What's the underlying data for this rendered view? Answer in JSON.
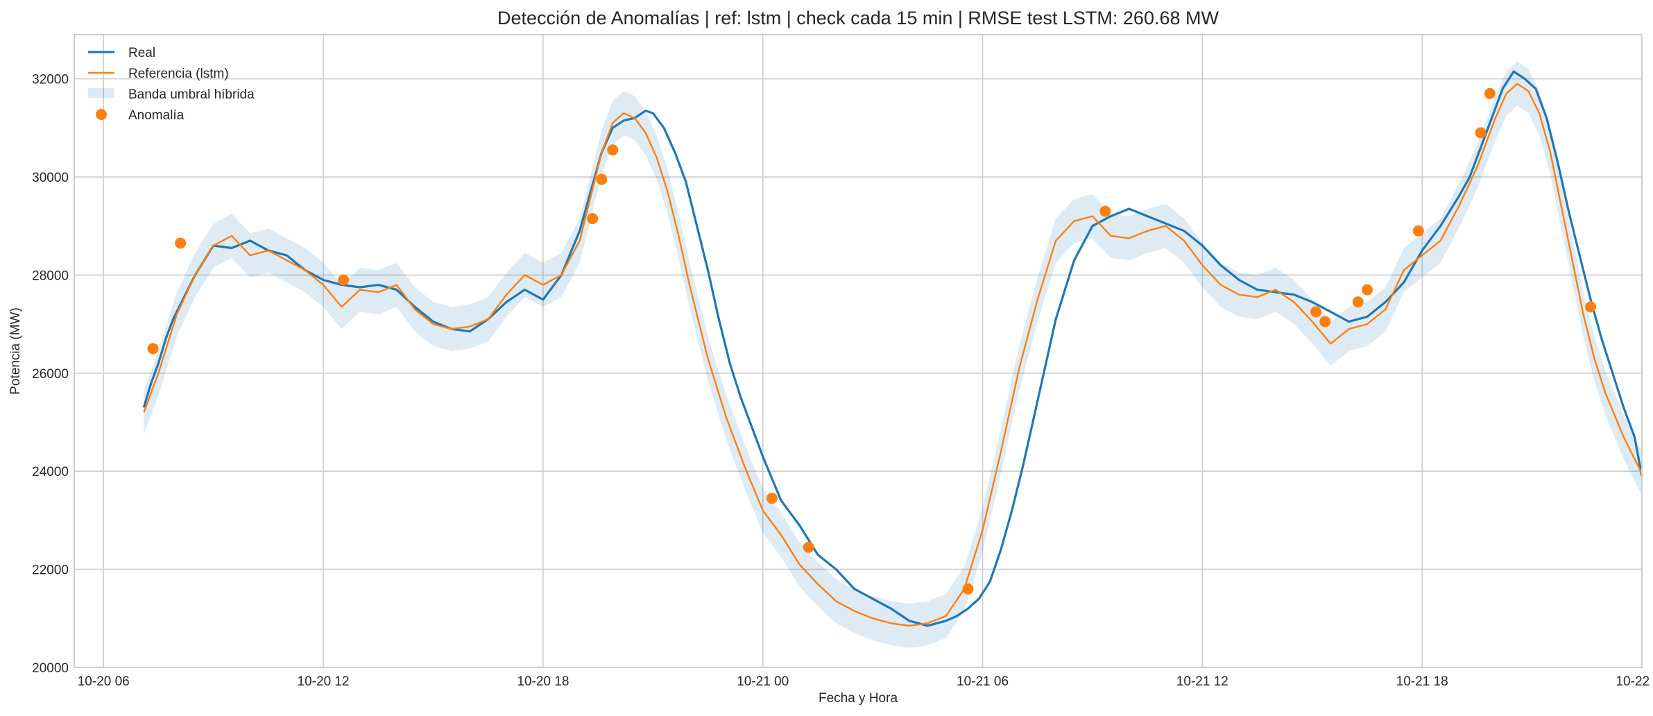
{
  "colors": {
    "real": "#1f77b4",
    "reference": "#ff7f0e",
    "band": "#1f77b4",
    "anomaly": "#ff7f0e",
    "grid": "#cccccc",
    "background": "#ffffff"
  },
  "chart_data": {
    "type": "line",
    "title": "Detección de Anomalías | ref: lstm | check cada 15 min | RMSE test LSTM: 260.68 MW",
    "xlabel": "Fecha y Hora",
    "ylabel": "Potencia (MW)",
    "x_unit": "hours since 10-20 06:00",
    "xlim": [
      -0.8,
      42.0
    ],
    "ylim": [
      20000,
      32900
    ],
    "grid": true,
    "legend_position": "top-left",
    "x_ticks": [
      {
        "value": 0,
        "label": "10-20 06"
      },
      {
        "value": 6,
        "label": "10-20 12"
      },
      {
        "value": 12,
        "label": "10-20 18"
      },
      {
        "value": 18,
        "label": "10-21 00"
      },
      {
        "value": 24,
        "label": "10-21 06"
      },
      {
        "value": 30,
        "label": "10-21 12"
      },
      {
        "value": 36,
        "label": "10-21 18"
      },
      {
        "value": 42,
        "label": "10-22 00"
      }
    ],
    "y_ticks": [
      20000,
      22000,
      24000,
      26000,
      28000,
      30000,
      32000
    ],
    "legend": [
      "Real",
      "Referencia (lstm)",
      "Banda umbral híbrida",
      "Anomalía"
    ],
    "real": {
      "name": "Real",
      "x": [
        1.1,
        1.3,
        1.5,
        1.7,
        1.9,
        2.1,
        2.5,
        3.0,
        3.5,
        4.0,
        4.5,
        5.0,
        5.5,
        6.0,
        6.5,
        7.0,
        7.5,
        8.0,
        8.5,
        9.0,
        9.5,
        10.0,
        10.5,
        11.0,
        11.5,
        12.0,
        12.5,
        13.0,
        13.3,
        13.6,
        13.9,
        14.2,
        14.5,
        14.8,
        15.0,
        15.3,
        15.6,
        15.9,
        16.2,
        16.5,
        16.8,
        17.1,
        17.4,
        17.7,
        18.0,
        18.5,
        19.0,
        19.5,
        20.0,
        20.5,
        21.0,
        21.5,
        22.0,
        22.5,
        23.0,
        23.3,
        23.6,
        23.9,
        24.2,
        24.5,
        24.8,
        25.1,
        25.4,
        25.7,
        26.0,
        26.5,
        27.0,
        27.5,
        28.0,
        28.5,
        29.0,
        29.5,
        30.0,
        30.5,
        31.0,
        31.5,
        32.0,
        32.5,
        33.0,
        33.5,
        34.0,
        34.5,
        35.0,
        35.5,
        36.0,
        36.5,
        37.0,
        37.3,
        37.6,
        37.9,
        38.2,
        38.5,
        38.8,
        39.1,
        39.4,
        39.7,
        40.0,
        40.3,
        40.6,
        40.9,
        41.2,
        41.5,
        41.8,
        42.0
      ],
      "y": [
        25300,
        25800,
        26200,
        26700,
        27100,
        27400,
        28000,
        28600,
        28550,
        28700,
        28500,
        28400,
        28100,
        27900,
        27800,
        27750,
        27800,
        27700,
        27350,
        27050,
        26900,
        26850,
        27100,
        27450,
        27700,
        27500,
        28000,
        28900,
        29700,
        30500,
        31000,
        31150,
        31200,
        31350,
        31300,
        31000,
        30500,
        29900,
        29000,
        28100,
        27100,
        26200,
        25500,
        24900,
        24300,
        23400,
        22900,
        22300,
        22000,
        21600,
        21400,
        21200,
        20950,
        20850,
        20950,
        21050,
        21200,
        21400,
        21750,
        22400,
        23200,
        24100,
        25100,
        26100,
        27100,
        28300,
        29000,
        29200,
        29350,
        29200,
        29050,
        28900,
        28600,
        28200,
        27900,
        27700,
        27650,
        27600,
        27450,
        27250,
        27050,
        27150,
        27450,
        27850,
        28500,
        29000,
        29600,
        30000,
        30600,
        31200,
        31800,
        32150,
        32000,
        31800,
        31200,
        30300,
        29300,
        28400,
        27500,
        26700,
        26000,
        25300,
        24700,
        23900
      ]
    },
    "reference": {
      "name": "Referencia (lstm)",
      "x": [
        1.1,
        1.5,
        2.0,
        2.5,
        3.0,
        3.5,
        4.0,
        4.5,
        5.0,
        5.5,
        6.0,
        6.5,
        7.0,
        7.5,
        8.0,
        8.5,
        9.0,
        9.5,
        10.0,
        10.5,
        11.0,
        11.5,
        12.0,
        12.5,
        13.0,
        13.3,
        13.6,
        13.9,
        14.2,
        14.5,
        14.8,
        15.1,
        15.4,
        15.7,
        16.0,
        16.5,
        17.0,
        17.5,
        18.0,
        18.5,
        19.0,
        19.5,
        20.0,
        20.5,
        21.0,
        21.5,
        22.0,
        22.5,
        23.0,
        23.5,
        24.0,
        24.5,
        25.0,
        25.5,
        26.0,
        26.5,
        27.0,
        27.5,
        28.0,
        28.5,
        29.0,
        29.5,
        30.0,
        30.5,
        31.0,
        31.5,
        32.0,
        32.5,
        33.0,
        33.5,
        34.0,
        34.5,
        35.0,
        35.5,
        36.0,
        36.5,
        37.0,
        37.5,
        38.0,
        38.3,
        38.6,
        38.9,
        39.2,
        39.5,
        39.8,
        40.1,
        40.4,
        40.7,
        41.0,
        41.5,
        42.0
      ],
      "y": [
        25200,
        26000,
        27200,
        28000,
        28600,
        28800,
        28400,
        28500,
        28300,
        28100,
        27800,
        27350,
        27700,
        27650,
        27800,
        27300,
        27000,
        26900,
        26950,
        27100,
        27600,
        28000,
        27800,
        28000,
        28700,
        29600,
        30500,
        31100,
        31300,
        31200,
        30900,
        30400,
        29700,
        28800,
        27800,
        26300,
        25100,
        24100,
        23200,
        22700,
        22100,
        21700,
        21350,
        21150,
        21000,
        20900,
        20850,
        20900,
        21050,
        21600,
        22800,
        24400,
        26100,
        27500,
        28700,
        29100,
        29200,
        28800,
        28750,
        28900,
        29000,
        28700,
        28200,
        27800,
        27600,
        27550,
        27700,
        27450,
        27050,
        26600,
        26900,
        27000,
        27300,
        28100,
        28400,
        28700,
        29400,
        30200,
        31200,
        31700,
        31900,
        31750,
        31300,
        30500,
        29400,
        28300,
        27200,
        26300,
        25600,
        24700,
        23950
      ]
    },
    "band_halfwidth_mw": 450,
    "anomalies": {
      "name": "Anomalía",
      "x": [
        1.35,
        2.1,
        6.55,
        13.35,
        13.6,
        13.9,
        18.25,
        19.25,
        23.6,
        27.35,
        33.1,
        33.35,
        34.25,
        34.5,
        35.9,
        37.6,
        37.85,
        40.6
      ],
      "y": [
        26500,
        28650,
        27900,
        29150,
        29950,
        30550,
        23450,
        22450,
        21600,
        29300,
        27250,
        27050,
        27450,
        27700,
        28900,
        30900,
        31700,
        27350
      ]
    }
  }
}
